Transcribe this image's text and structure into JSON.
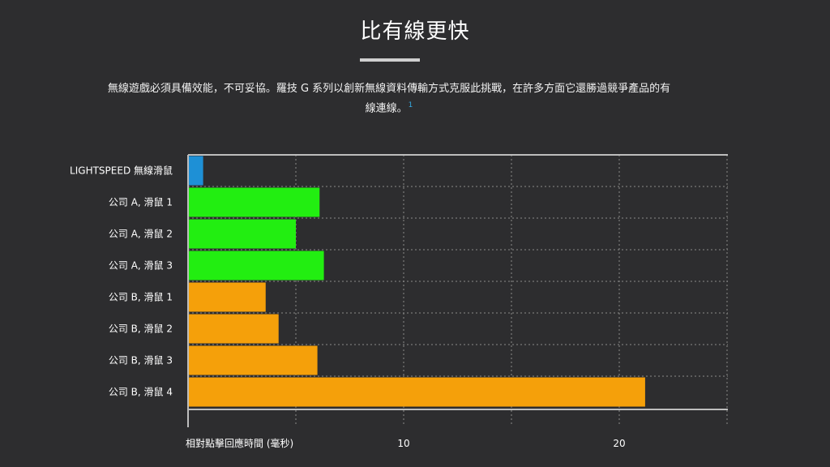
{
  "page": {
    "title": "比有線更快",
    "description": "無線遊戲必須具備效能，不可妥協。羅技 G 系列以創新無線資料傳輸方式克服此挑戰，在許多方面它還勝過競爭產品的有線連線。",
    "footnote": "1"
  },
  "chart_data": {
    "type": "bar",
    "orientation": "horizontal",
    "categories": [
      "LIGHTSPEED 無線滑鼠",
      "公司 A, 滑鼠 1",
      "公司 A, 滑鼠 2",
      "公司 A, 滑鼠 3",
      "公司 B, 滑鼠 1",
      "公司 B, 滑鼠 2",
      "公司 B, 滑鼠 3",
      "公司 B, 滑鼠 4"
    ],
    "values": [
      0.7,
      6.1,
      5.0,
      6.3,
      3.6,
      4.2,
      6.0,
      21.2
    ],
    "bar_colors": [
      "#1e90d6",
      "#22ee11",
      "#22ee11",
      "#22ee11",
      "#f5a00a",
      "#f5a00a",
      "#f5a00a",
      "#f5a00a"
    ],
    "xlabel": "相對點擊回應時間 (毫秒)",
    "xlim": [
      0,
      25
    ],
    "xticks": [
      10,
      20
    ],
    "xtick_labels": [
      "10",
      "20"
    ],
    "grid": true
  },
  "colors": {
    "background": "#2d2d2f",
    "grid": "#8a8a8a",
    "axis": "#bdbdbd"
  }
}
